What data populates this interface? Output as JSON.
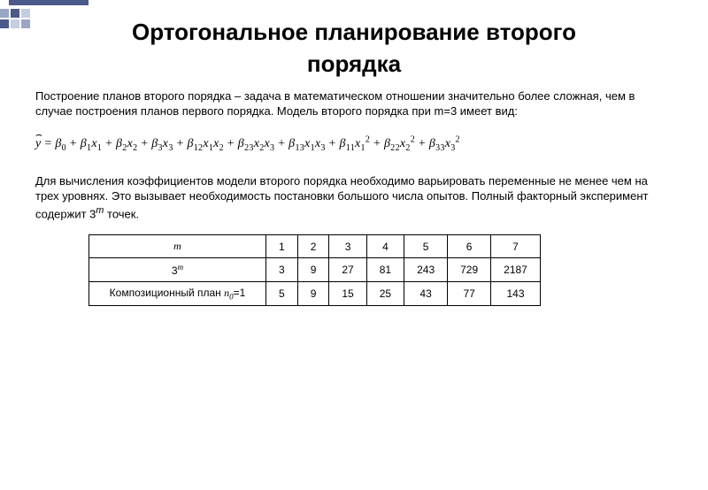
{
  "title_line1": "Ортогональное планирование второго",
  "title_line2": "порядка",
  "paragraph1": "Построение планов второго порядка – задача в математическом отношении значительно более сложная, чем в случае построения планов первого порядка. Модель второго порядка при m=3 имеет вид:",
  "formula_text": "y = β₀ + β₁x₁ + β₂x₂ + β₃x₃ + β₁₂x₁x₂ + β₂₃x₂x₃ + β₁₃x₁x₃ + β₁₁x₁² + β₂₂x₂² + β₃₃x₃²",
  "paragraph2_part1": "Для вычисления коэффициентов модели второго порядка необходимо варьировать переменные не менее чем на трех уровнях. Это вызывает необходимость постановки большого числа опытов. Полный факторный эксперимент содержит 3",
  "paragraph2_sup": "m",
  "paragraph2_part2": " точек.",
  "table": {
    "row_labels": [
      "m",
      "3^m",
      "Композиционный план n₀=1"
    ],
    "columns": [
      "1",
      "2",
      "3",
      "4",
      "5",
      "6",
      "7"
    ],
    "rows": [
      [
        "1",
        "2",
        "3",
        "4",
        "5",
        "6",
        "7"
      ],
      [
        "3",
        "9",
        "27",
        "81",
        "243",
        "729",
        "2187"
      ],
      [
        "5",
        "9",
        "15",
        "25",
        "43",
        "77",
        "143"
      ]
    ]
  },
  "colors": {
    "text": "#000000",
    "bg": "#ffffff",
    "decor_dark": "#4a5a8a",
    "decor_mid": "#9aa6c4",
    "decor_light": "#c5cde0"
  }
}
